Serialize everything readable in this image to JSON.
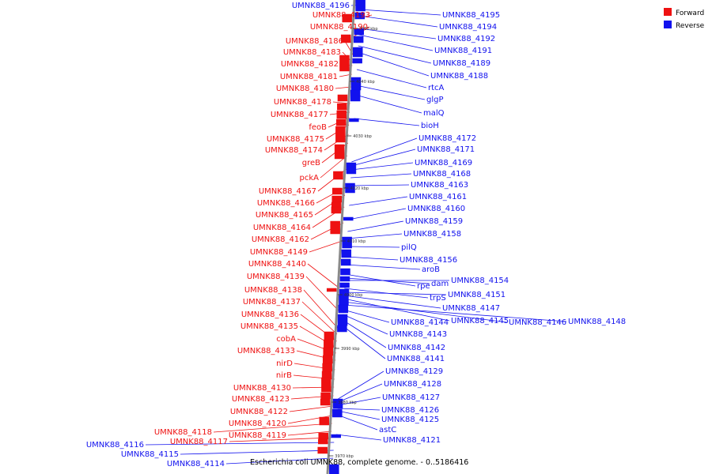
{
  "colors": {
    "forward": "#ee1111",
    "reverse": "#1111ee",
    "axis": "#8a8a8a"
  },
  "caption": "Escherichia coli UMNK88, complete genome. - 0..5186416",
  "legend": [
    {
      "label": "Forward",
      "color": "#ee1111"
    },
    {
      "label": "Reverse",
      "color": "#1111ee"
    }
  ],
  "ticks": [
    "4050 kbp",
    "4040 kbp",
    "4030 kbp",
    "4020 kbp",
    "4010 kbp",
    "4000 kbp",
    "3990 kbp",
    "3980 kbp",
    "3970 kbp"
  ],
  "forward_genes": [
    "UMNK88_4193",
    "UMNK88_4190",
    "UMNK88_4186",
    "UMNK88_4183",
    "UMNK88_4182",
    "UMNK88_4181",
    "UMNK88_4180",
    "UMNK88_4178",
    "UMNK88_4177",
    "feoB",
    "UMNK88_4175",
    "UMNK88_4174",
    "greB",
    "pckA",
    "UMNK88_4167",
    "UMNK88_4166",
    "UMNK88_4165",
    "UMNK88_4164",
    "UMNK88_4162",
    "UMNK88_4149",
    "UMNK88_4140",
    "UMNK88_4139",
    "UMNK88_4138",
    "UMNK88_4137",
    "UMNK88_4136",
    "UMNK88_4135",
    "cobA",
    "UMNK88_4133",
    "nirD",
    "nirB",
    "UMNK88_4130",
    "UMNK88_4123",
    "UMNK88_4122",
    "UMNK88_4120",
    "UMNK88_4118",
    "UMNK88_4119",
    "UMNK88_4117"
  ],
  "reverse_left_genes": [
    "UMNK88_4196",
    "UMNK88_4116",
    "UMNK88_4115",
    "UMNK88_4114"
  ],
  "reverse_genes": [
    "UMNK88_4195",
    "UMNK88_4194",
    "UMNK88_4192",
    "UMNK88_4191",
    "UMNK88_4189",
    "UMNK88_4188",
    "rtcA",
    "glgP",
    "malQ",
    "bioH",
    "UMNK88_4172",
    "UMNK88_4171",
    "UMNK88_4169",
    "UMNK88_4168",
    "UMNK88_4163",
    "UMNK88_4161",
    "UMNK88_4160",
    "UMNK88_4159",
    "UMNK88_4158",
    "pilQ",
    "UMNK88_4156",
    "aroB",
    "rpe",
    "dam",
    "UMNK88_4154",
    "trpS",
    "UMNK88_4151",
    "UMNK88_4147",
    "UMNK88_4145",
    "UMNK88_4146",
    "UMNK88_4148",
    "UMNK88_4144",
    "UMNK88_4143",
    "UMNK88_4142",
    "UMNK88_4141",
    "UMNK88_4129",
    "UMNK88_4128",
    "UMNK88_4127",
    "UMNK88_4126",
    "UMNK88_4125",
    "astC",
    "UMNK88_4121"
  ]
}
